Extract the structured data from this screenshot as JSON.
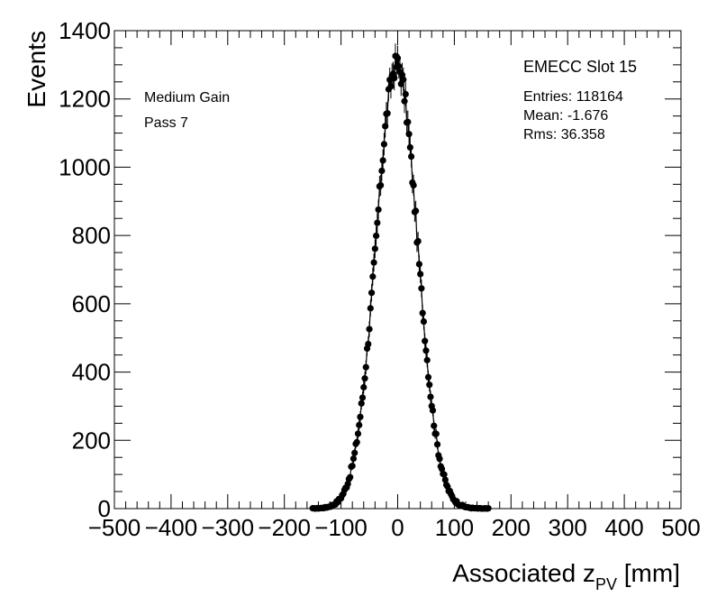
{
  "chart_data": {
    "type": "scatter",
    "title": "EMECC Slot 15",
    "xlabel": "Associated z",
    "xlabel_sub": "PV",
    "xlabel_unit": " [mm]",
    "ylabel": "Events",
    "xlim": [
      -500,
      500
    ],
    "ylim": [
      0,
      1400
    ],
    "xticks": [
      -500,
      -400,
      -300,
      -200,
      -100,
      0,
      100,
      200,
      300,
      400,
      500
    ],
    "yticks": [
      0,
      200,
      400,
      600,
      800,
      1000,
      1200,
      1400
    ],
    "stats": {
      "entries": "Entries: 118164",
      "mean": "Mean: -1.676",
      "rms": "Rms: 36.358"
    },
    "annotations": [
      "Medium Gain",
      "Pass 7"
    ],
    "distribution": {
      "shape": "gaussian",
      "mean": -1.676,
      "rms": 36.358,
      "peak": 1300,
      "bin_width": 2,
      "range": [
        -150,
        160
      ]
    }
  }
}
